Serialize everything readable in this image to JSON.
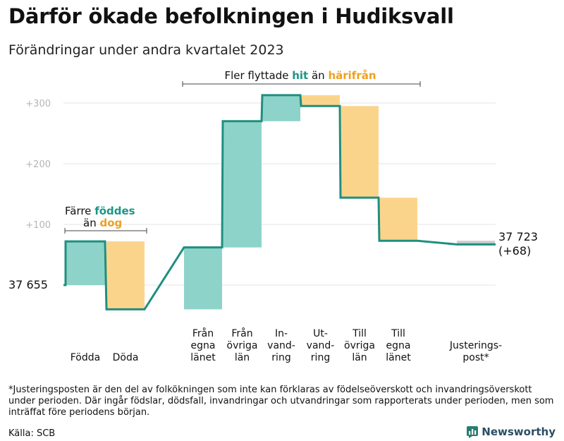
{
  "title": "Därför ökade befolkningen i Hudiksvall",
  "subtitle": "Förändringar under andra kvartalet 2023",
  "colors": {
    "gain": "#8ed3ca",
    "loss": "#fbd48c",
    "line": "#1f8f7f",
    "adjust": "#cccccc",
    "grid": "#e3e3e3",
    "tick": "#b5b5b5",
    "teal_text": "#1a9684",
    "orange_text": "#f0a020"
  },
  "chart_data": {
    "type": "waterfall",
    "start_population": 37655,
    "start_label": "37  655",
    "end_label_line1": "37 723",
    "end_label_line2": "(+68)",
    "yaxis": {
      "ticks": [
        100,
        200,
        300
      ],
      "tick_labels": [
        "+100",
        "+200",
        "+300"
      ],
      "min": -40,
      "max": 320
    },
    "steps": [
      {
        "key": "fodda",
        "lines": [
          "Födda"
        ],
        "delta": 72,
        "kind": "gain"
      },
      {
        "key": "doda",
        "lines": [
          "Döda"
        ],
        "delta": -112,
        "kind": "loss"
      },
      {
        "key": "egna-in",
        "lines": [
          "Från",
          "egna",
          "länet"
        ],
        "delta": 102,
        "kind": "gain"
      },
      {
        "key": "ovriga-in",
        "lines": [
          "Från",
          "övriga",
          "län"
        ],
        "delta": 208,
        "kind": "gain"
      },
      {
        "key": "invandring",
        "lines": [
          "In-",
          "vand-",
          "ring"
        ],
        "delta": 43,
        "kind": "gain"
      },
      {
        "key": "utvandring",
        "lines": [
          "Ut-",
          "vand-",
          "ring"
        ],
        "delta": -18,
        "kind": "loss"
      },
      {
        "key": "ovriga-ut",
        "lines": [
          "Till",
          "övriga",
          "län"
        ],
        "delta": -151,
        "kind": "loss"
      },
      {
        "key": "egna-ut",
        "lines": [
          "Till",
          "egna",
          "länet"
        ],
        "delta": -71,
        "kind": "loss"
      },
      {
        "key": "justering",
        "lines": [
          "Justerings-",
          "post*"
        ],
        "delta": -6,
        "kind": "adjust"
      }
    ],
    "annotations": {
      "births": {
        "line1": "Färre ",
        "line1_em": "föddes",
        "line2": "än ",
        "line2_em": "dog"
      },
      "migration": {
        "pre": "Fler flyttade ",
        "em1": "hit",
        "mid": " än ",
        "em2": "härifrån"
      }
    }
  },
  "footnote": "*Justeringsposten är den del av folkökningen som inte kan förklaras av födelseöverskott och invandringsöverskott under perioden. Där ingår födslar, dödsfall, invandringar och utvandringar som rapporterats under perioden, men som inträffat före periodens början.",
  "source": "Källa: SCB",
  "brand": "Newsworthy"
}
